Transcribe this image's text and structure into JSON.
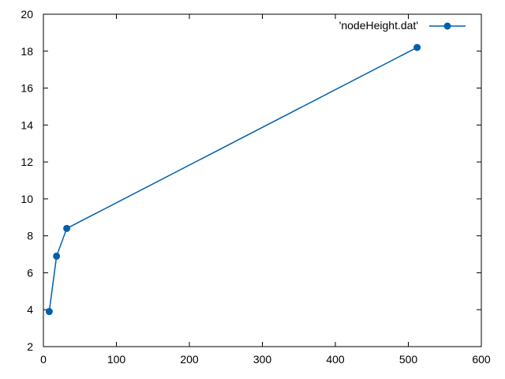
{
  "chart_data": {
    "type": "line",
    "xlim": [
      0,
      600
    ],
    "ylim": [
      2,
      20
    ],
    "x_ticks": [
      0,
      100,
      200,
      300,
      400,
      500,
      600
    ],
    "y_ticks": [
      2,
      4,
      6,
      8,
      10,
      12,
      14,
      16,
      18,
      20
    ],
    "grid": false,
    "legend_position": "top-right",
    "series": [
      {
        "name": "'nodeHeight.dat'",
        "color": "#0060ad",
        "marker": "filled-circle",
        "x": [
          8,
          18,
          32,
          512
        ],
        "y": [
          3.9,
          6.9,
          8.4,
          18.2
        ]
      }
    ]
  }
}
